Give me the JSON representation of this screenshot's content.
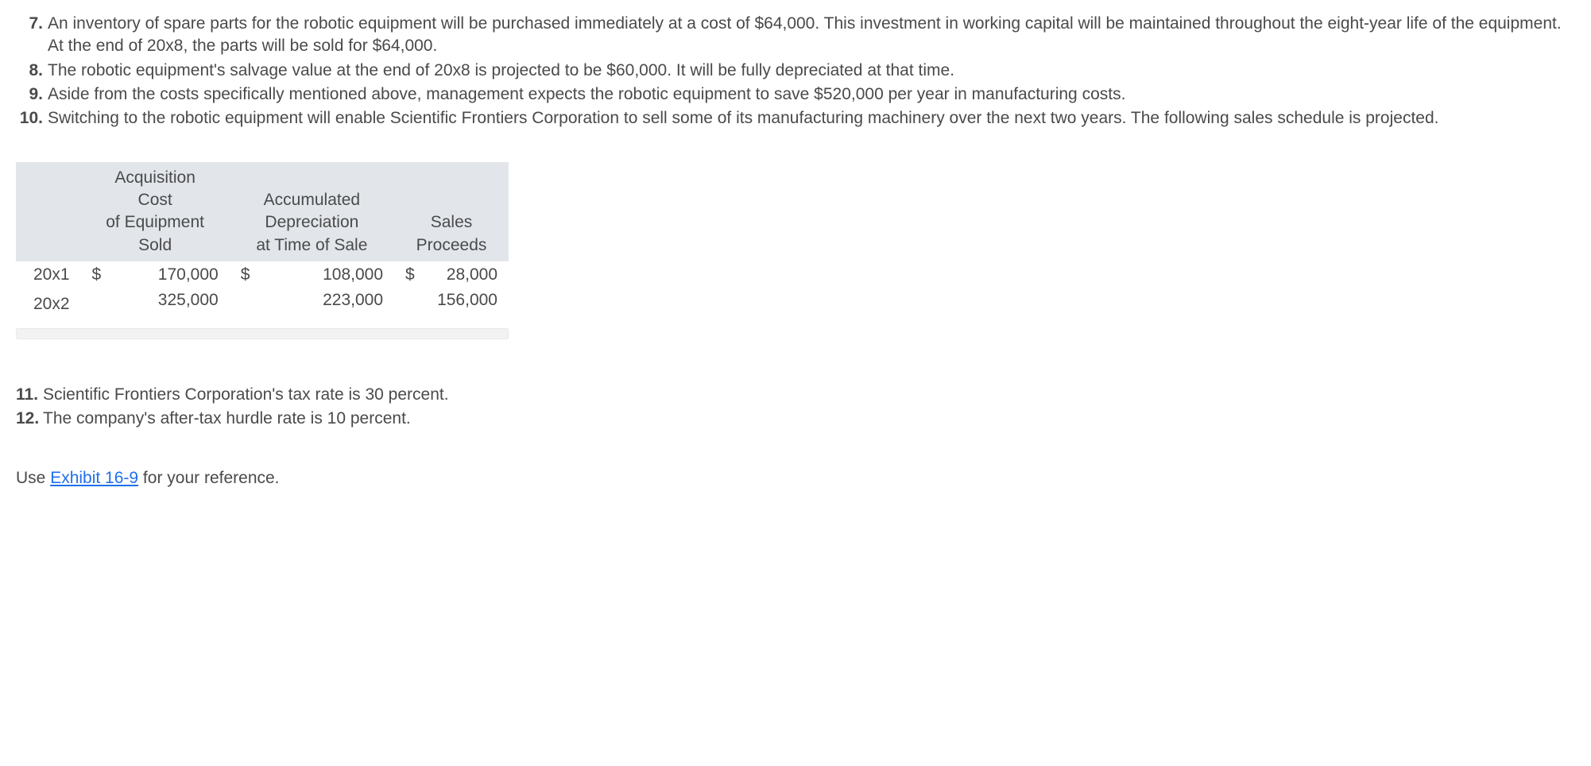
{
  "list_upper": [
    {
      "num": "7.",
      "text": "An inventory of spare parts for the robotic equipment will be purchased immediately at a cost of $64,000. This investment in working capital will be maintained throughout the eight-year life of the equipment. At the end of 20x8, the parts will be sold for $64,000."
    },
    {
      "num": "8.",
      "text": "The robotic equipment's salvage value at the end of 20x8 is projected to be $60,000. It will be fully depreciated at that time."
    },
    {
      "num": "9.",
      "text": "Aside from the costs specifically mentioned above, management expects the robotic equipment to save $520,000 per year in manufacturing costs."
    },
    {
      "num": "10.",
      "text": "Switching to the robotic equipment will enable Scientific Frontiers Corporation to sell some of its manufacturing machinery over the next two years. The following sales schedule is projected."
    }
  ],
  "table": {
    "headers": {
      "col1_l1": "Acquisition",
      "col1_l2": "Cost",
      "col1_l3": "of Equipment",
      "col1_l4": "Sold",
      "col2_l1": "Accumulated",
      "col2_l2": "Depreciation",
      "col2_l3": "at Time of Sale",
      "col3_l1": "Sales",
      "col3_l2": "Proceeds"
    },
    "rows": [
      {
        "year": "20x1",
        "acq_dollar": "$",
        "acq": "170,000",
        "dep_dollar": "$",
        "dep": "108,000",
        "pro_dollar": "$",
        "pro": "28,000"
      },
      {
        "year": "20x2",
        "acq_dollar": "",
        "acq": "325,000",
        "dep_dollar": "",
        "dep": "223,000",
        "pro_dollar": "",
        "pro": "156,000"
      }
    ]
  },
  "list_lower": [
    {
      "num": "11.",
      "text": "Scientific Frontiers Corporation's tax rate is 30 percent."
    },
    {
      "num": "12.",
      "text": "The company's after-tax hurdle rate is 10 percent."
    }
  ],
  "use_line_prefix": "Use ",
  "use_line_link": "Exhibit 16-9",
  "use_line_suffix": " for your reference."
}
